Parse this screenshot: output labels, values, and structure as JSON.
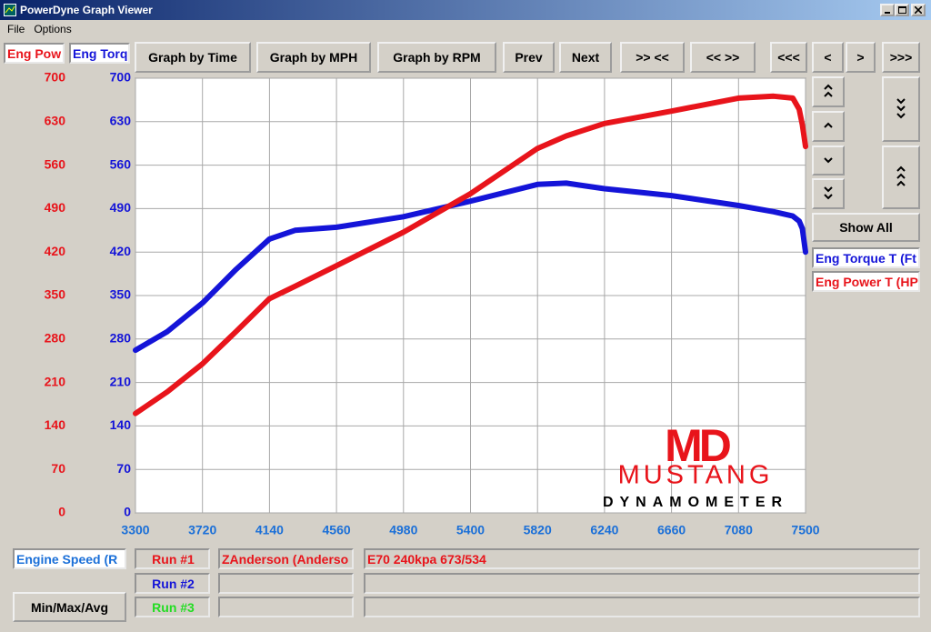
{
  "window": {
    "title": "PowerDyne Graph Viewer",
    "menu": [
      "File",
      "Options"
    ]
  },
  "toolbar": {
    "axis_tabs": [
      "Eng Pow",
      "Eng Torq"
    ],
    "buttons": [
      "Graph by Time",
      "Graph by MPH",
      "Graph by RPM",
      "Prev",
      "Next",
      ">> <<",
      "<< >>",
      "<<<",
      "<",
      ">",
      ">>>"
    ]
  },
  "side": {
    "show_all": "Show All"
  },
  "chart_data": {
    "type": "line",
    "x_label": "Engine Speed (R",
    "x": [
      3300,
      3500,
      3720,
      3930,
      4140,
      4300,
      4560,
      4980,
      5400,
      5820,
      6000,
      6240,
      6660,
      7080,
      7300,
      7420,
      7460,
      7480,
      7500
    ],
    "xlim": [
      3300,
      7500
    ],
    "xticks": [
      3300,
      3720,
      4140,
      4560,
      4980,
      5400,
      5820,
      6240,
      6660,
      7080,
      7500
    ],
    "ylim": [
      0,
      700
    ],
    "yticks": [
      0,
      70,
      140,
      210,
      280,
      350,
      420,
      490,
      560,
      630,
      700
    ],
    "y2lim": [
      0,
      700
    ],
    "y2ticks": [
      0,
      70,
      140,
      210,
      280,
      350,
      420,
      490,
      560,
      630,
      700
    ],
    "grid": true,
    "series": [
      {
        "name": "Eng Torque T (Ft",
        "color": "#1414d8",
        "axis": "y2",
        "values": [
          262,
          292,
          338,
          392,
          441,
          455,
          460,
          477,
          502,
          529,
          531,
          522,
          511,
          495,
          485,
          478,
          470,
          458,
          420
        ]
      },
      {
        "name": "Eng Power T (HP",
        "color": "#e8141b",
        "values": [
          160,
          195,
          240,
          292,
          345,
          365,
          398,
          452,
          514,
          587,
          607,
          627,
          647,
          668,
          671,
          668,
          650,
          625,
          590
        ]
      }
    ]
  },
  "logo": {
    "mark": "MD",
    "name": "MUSTANG",
    "sub": "DYNAMOMETER"
  },
  "footer": {
    "button": "Min/Max/Avg",
    "runs": [
      {
        "label": "Run #1",
        "color": "#e8141b",
        "driver": "ZAnderson (Anderso",
        "note": "E70 240kpa 673/534"
      },
      {
        "label": "Run #2",
        "color": "#1414d8"
      },
      {
        "label": "Run #3",
        "color": "#22dd22"
      }
    ]
  }
}
